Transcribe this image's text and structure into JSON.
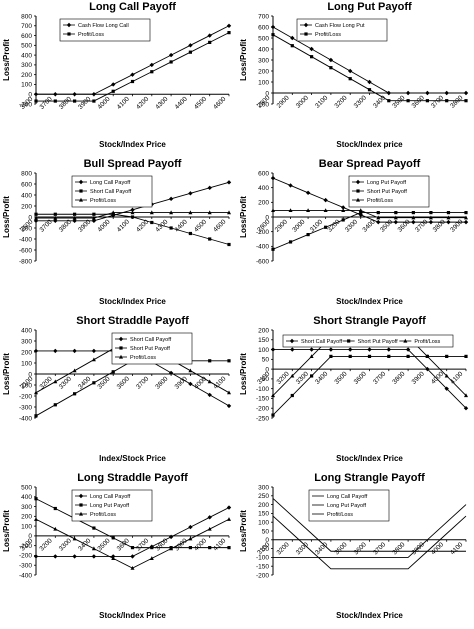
{
  "chart_data": [
    {
      "id": "long-call",
      "type": "line",
      "title": "Long Call Payoff",
      "xlabel": "Stock/Index Price",
      "ylabel": "Loss/Profit",
      "x": [
        3600,
        3700,
        3800,
        3900,
        4000,
        4100,
        4200,
        4300,
        4400,
        4500,
        4600
      ],
      "xticks": [
        "3600",
        "3700",
        "3800",
        "3900",
        "4000",
        "4100",
        "4200",
        "4300",
        "4400",
        "4500",
        "4600"
      ],
      "ylim": [
        -100,
        800
      ],
      "yticks": [
        -100,
        0,
        100,
        200,
        300,
        400,
        500,
        600,
        700,
        800
      ],
      "series": [
        {
          "name": "Cash Flow Long Call",
          "marker": "diamond",
          "values": [
            0,
            0,
            0,
            0,
            100,
            200,
            300,
            400,
            500,
            600,
            700
          ]
        },
        {
          "name": "Profit/Loss",
          "marker": "square",
          "values": [
            -70,
            -70,
            -70,
            -70,
            30,
            130,
            230,
            330,
            430,
            530,
            630
          ]
        }
      ],
      "legend": "top-left"
    },
    {
      "id": "long-put",
      "type": "line",
      "title": "Long Put Payoff",
      "xlabel": "Stock/Index price",
      "ylabel": "Loss/Profit",
      "x": [
        2800,
        2900,
        3000,
        3100,
        3200,
        3300,
        3400,
        3500,
        3600,
        3700,
        3800
      ],
      "xticks": [
        "2800",
        "2900",
        "3000",
        "3100",
        "3200",
        "3300",
        "3400",
        "3500",
        "3600",
        "3700",
        "3800"
      ],
      "ylim": [
        -100,
        700
      ],
      "yticks": [
        -100,
        0,
        100,
        200,
        300,
        400,
        500,
        600,
        700
      ],
      "series": [
        {
          "name": "Cash Flow Long Put",
          "marker": "diamond",
          "values": [
            600,
            500,
            400,
            300,
            200,
            100,
            0,
            0,
            0,
            0,
            0
          ]
        },
        {
          "name": "Profit/Loss",
          "marker": "square",
          "values": [
            530,
            430,
            330,
            230,
            130,
            30,
            -70,
            -70,
            -70,
            -70,
            -70
          ]
        }
      ],
      "legend": "top-left"
    },
    {
      "id": "bull-spread",
      "type": "line",
      "title": "Bull Spread Payoff",
      "xlabel": "Stock/Index Price",
      "ylabel": "Loss/Profit",
      "x": [
        3600,
        3700,
        3800,
        3900,
        4000,
        4100,
        4200,
        4300,
        4400,
        4500,
        4600
      ],
      "xticks": [
        "3600",
        "3700",
        "3800",
        "3900",
        "4000",
        "4100",
        "4200",
        "4300",
        "4400",
        "4500",
        "4600"
      ],
      "ylim": [
        -800,
        800
      ],
      "yticks": [
        -800,
        -600,
        -400,
        -200,
        0,
        200,
        400,
        600,
        800
      ],
      "series": [
        {
          "name": "Long Call Payoff",
          "marker": "diamond",
          "values": [
            -70,
            -70,
            -70,
            -70,
            30,
            130,
            230,
            330,
            430,
            530,
            630
          ]
        },
        {
          "name": "Short Call Payoff",
          "marker": "square",
          "values": [
            50,
            50,
            50,
            50,
            50,
            0,
            -100,
            -200,
            -300,
            -400,
            -500
          ]
        },
        {
          "name": "Profit/Loss",
          "marker": "triangle",
          "values": [
            -20,
            -20,
            -20,
            -20,
            80,
            80,
            80,
            80,
            80,
            80,
            80
          ]
        }
      ],
      "legend": "top-center"
    },
    {
      "id": "bear-spread",
      "type": "line",
      "title": "Bear Spread Payoff",
      "xlabel": "Stock/Index Price",
      "ylabel": "Loss/Profit",
      "x": [
        2800,
        2900,
        3000,
        3100,
        3200,
        3300,
        3400,
        3500,
        3600,
        3700,
        3800,
        3900
      ],
      "xticks": [
        "2800",
        "2900",
        "3000",
        "3100",
        "3200",
        "3300",
        "3400",
        "3500",
        "3600",
        "3700",
        "3800",
        "3900"
      ],
      "ylim": [
        -600,
        600
      ],
      "yticks": [
        -600,
        -400,
        -200,
        0,
        200,
        400,
        600
      ],
      "series": [
        {
          "name": "Long Put Payoff",
          "marker": "diamond",
          "values": [
            530,
            430,
            330,
            230,
            130,
            30,
            -70,
            -70,
            -70,
            -70,
            -70,
            -70
          ]
        },
        {
          "name": "Short Put Payoff",
          "marker": "square",
          "values": [
            -440,
            -340,
            -240,
            -140,
            -40,
            60,
            60,
            60,
            60,
            60,
            60,
            60
          ]
        },
        {
          "name": "Profit/Loss",
          "marker": "triangle",
          "values": [
            90,
            90,
            90,
            90,
            90,
            90,
            -10,
            -10,
            -10,
            -10,
            -10,
            -10
          ]
        }
      ],
      "legend": "top-right"
    },
    {
      "id": "short-straddle",
      "type": "line",
      "title": "Short Straddle Payoff",
      "xlabel": "Index/Stock Price",
      "ylabel": "Loss/Profit",
      "x": [
        3100,
        3200,
        3300,
        3400,
        3500,
        3600,
        3700,
        3800,
        3900,
        4000,
        4100
      ],
      "xticks": [
        "3100",
        "3200",
        "3300",
        "3400",
        "3500",
        "3600",
        "3700",
        "3800",
        "3900",
        "4000",
        "4100"
      ],
      "ylim": [
        -400,
        400
      ],
      "yticks": [
        -400,
        -300,
        -200,
        -100,
        0,
        100,
        200,
        300,
        400
      ],
      "series": [
        {
          "name": "Short Call Payoff",
          "marker": "diamond",
          "values": [
            210,
            210,
            210,
            210,
            210,
            210,
            110,
            10,
            -90,
            -190,
            -290
          ]
        },
        {
          "name": "Short Put Payoff",
          "marker": "square",
          "values": [
            -380,
            -280,
            -180,
            -80,
            20,
            120,
            120,
            120,
            120,
            120,
            120
          ]
        },
        {
          "name": "Profit/Loss",
          "marker": "triangle",
          "values": [
            -170,
            -70,
            30,
            130,
            230,
            330,
            230,
            130,
            30,
            -70,
            -170
          ]
        }
      ],
      "legend": "top-right"
    },
    {
      "id": "short-strangle",
      "type": "line",
      "title": "Short Strangle Payoff",
      "xlabel": "Stock/Index Price",
      "ylabel": "Loss/Profit",
      "x": [
        3100,
        3200,
        3300,
        3400,
        3500,
        3600,
        3700,
        3800,
        3900,
        4000,
        4100
      ],
      "xticks": [
        "3100",
        "3200",
        "3300",
        "3400",
        "3500",
        "3600",
        "3700",
        "3800",
        "3900",
        "4000",
        "4100"
      ],
      "ylim": [
        -250,
        200
      ],
      "yticks": [
        -250,
        -200,
        -150,
        -100,
        -50,
        0,
        50,
        100,
        150,
        200
      ],
      "series": [
        {
          "name": "Short Call Payoff",
          "marker": "diamond",
          "values": [
            100,
            100,
            100,
            100,
            100,
            100,
            100,
            100,
            0,
            -100,
            -200
          ]
        },
        {
          "name": "Short Put Payoff",
          "marker": "square",
          "values": [
            -235,
            -135,
            -35,
            65,
            65,
            65,
            65,
            65,
            65,
            65,
            65
          ]
        },
        {
          "name": "Profit/Loss",
          "marker": "triangle",
          "values": [
            -135,
            -35,
            65,
            165,
            165,
            165,
            165,
            165,
            65,
            -35,
            -135
          ]
        }
      ],
      "legend": "top"
    },
    {
      "id": "long-straddle",
      "type": "line",
      "title": "Long Straddle Payoff",
      "xlabel": "Stock/Index Price",
      "ylabel": "Loss/Profit",
      "x": [
        3100,
        3200,
        3300,
        3400,
        3500,
        3600,
        3700,
        3800,
        3900,
        4000,
        4100
      ],
      "xticks": [
        "3100",
        "3200",
        "3300",
        "3400",
        "3500",
        "3600",
        "3700",
        "3800",
        "3900",
        "4000",
        "4100"
      ],
      "ylim": [
        -400,
        500
      ],
      "yticks": [
        -400,
        -300,
        -200,
        -100,
        0,
        100,
        200,
        300,
        400,
        500
      ],
      "series": [
        {
          "name": "Long Call Payoff",
          "marker": "diamond",
          "values": [
            -210,
            -210,
            -210,
            -210,
            -210,
            -210,
            -110,
            -10,
            90,
            190,
            290
          ]
        },
        {
          "name": "Long Put Payoff",
          "marker": "square",
          "values": [
            380,
            280,
            180,
            80,
            -20,
            -120,
            -120,
            -120,
            -120,
            -120,
            -120
          ]
        },
        {
          "name": "Profit/Loss",
          "marker": "triangle",
          "values": [
            170,
            70,
            -30,
            -130,
            -230,
            -330,
            -230,
            -130,
            -30,
            70,
            170
          ]
        }
      ],
      "legend": "top-center"
    },
    {
      "id": "long-strangle",
      "type": "line",
      "title": "Long Strangle Payoff",
      "xlabel": "Stock/Index Price",
      "ylabel": "Loss/Profit",
      "x": [
        3100,
        3200,
        3300,
        3400,
        3500,
        3600,
        3700,
        3800,
        3900,
        4000,
        4100
      ],
      "xticks": [
        "3100",
        "3200",
        "3300",
        "3400",
        "3500",
        "3600",
        "3700",
        "3800",
        "3900",
        "4000",
        "4100"
      ],
      "ylim": [
        -200,
        300
      ],
      "yticks": [
        -200,
        -150,
        -100,
        -50,
        0,
        50,
        100,
        150,
        200,
        250,
        300
      ],
      "series": [
        {
          "name": "Long Call Payoff",
          "marker": "none",
          "values": [
            -100,
            -100,
            -100,
            -100,
            -100,
            -100,
            -100,
            -100,
            0,
            100,
            200
          ]
        },
        {
          "name": "Long Put Payoff",
          "marker": "none",
          "values": [
            235,
            135,
            35,
            -65,
            -65,
            -65,
            -65,
            -65,
            -65,
            -65,
            -65
          ]
        },
        {
          "name": "Profit/Loss",
          "marker": "none",
          "values": [
            135,
            35,
            -65,
            -165,
            -165,
            -165,
            -165,
            -165,
            -65,
            35,
            135
          ]
        }
      ],
      "legend": "top-center"
    }
  ]
}
